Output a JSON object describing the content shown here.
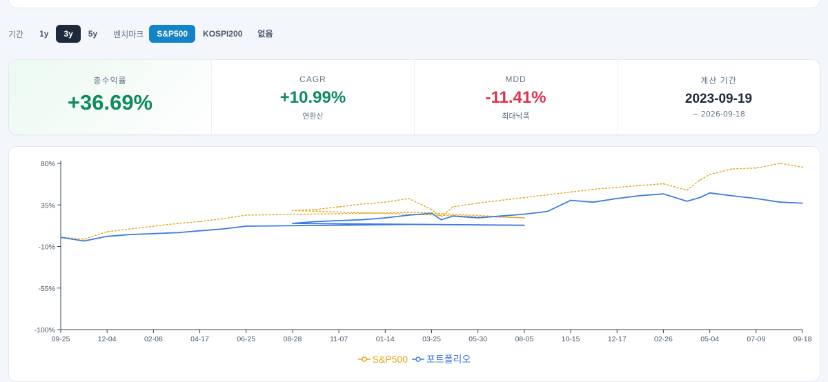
{
  "toolbar": {
    "period_label": "기간",
    "periods": [
      "1y",
      "3y",
      "5y"
    ],
    "active_period": "3y",
    "benchmark_label": "벤치마크",
    "benchmarks": [
      "S&P500",
      "KOSPI200",
      "없음"
    ],
    "active_benchmark": "S&P500"
  },
  "stats": {
    "total_return": {
      "title": "총수익률",
      "value": "+36.69%"
    },
    "cagr": {
      "title": "CAGR",
      "value": "+10.99%",
      "sub": "연환산"
    },
    "mdd": {
      "title": "MDD",
      "value": "-11.41%",
      "sub": "최대낙폭"
    },
    "period": {
      "title": "계산 기간",
      "value": "2023-09-19",
      "sub": "~ 2026-09-18"
    }
  },
  "colors": {
    "benchmark": "#e8a317",
    "portfolio": "#3b7be0",
    "positive": "#0f8a5f",
    "negative": "#e1324d",
    "accent": "#1583c8"
  },
  "chart_data": {
    "type": "line",
    "y_ticks": [
      "80%",
      "35%",
      "-10%",
      "-55%",
      "-100%"
    ],
    "ylim": [
      -100,
      80
    ],
    "x_ticks": [
      "09-25",
      "12-04",
      "02-08",
      "04-17",
      "06-25",
      "08-28",
      "11-07",
      "01-14",
      "03-25",
      "05-30",
      "08-05",
      "10-15",
      "12-17",
      "02-26",
      "05-04",
      "07-09",
      "09-18"
    ],
    "grid": false,
    "legend_position": "bottom",
    "series": [
      {
        "name": "S&P500",
        "style": "dashed",
        "x": [
          "09-25",
          "10-30",
          "12-04",
          "01-06",
          "02-08",
          "03-15",
          "04-17",
          "05-20",
          "06-25",
          "07-20",
          "08-05",
          "08-28",
          "10-02",
          "11-07",
          "12-10",
          "01-14",
          "02-20",
          "03-25",
          "04-08",
          "04-25",
          "05-30",
          "07-01",
          "08-05",
          "09-10",
          "10-15",
          "11-15",
          "12-17",
          "01-20",
          "02-26",
          "03-31",
          "04-20",
          "05-04",
          "06-05",
          "07-09",
          "08-15",
          "09-18"
        ],
        "values": [
          0,
          -2,
          6,
          9,
          12,
          15,
          17,
          20,
          24,
          27,
          21,
          29,
          30,
          33,
          36,
          38,
          42,
          30,
          22,
          33,
          37,
          40,
          43,
          46,
          49,
          52,
          54,
          56,
          58,
          51,
          62,
          68,
          74,
          75,
          80,
          76
        ]
      },
      {
        "name": "포트폴리오",
        "style": "solid",
        "x": [
          "09-25",
          "10-30",
          "12-04",
          "01-06",
          "02-08",
          "03-15",
          "04-17",
          "05-20",
          "06-25",
          "07-20",
          "08-05",
          "08-28",
          "10-02",
          "11-07",
          "12-10",
          "01-14",
          "02-20",
          "03-25",
          "04-08",
          "04-25",
          "05-30",
          "07-01",
          "08-05",
          "09-10",
          "10-15",
          "11-15",
          "12-17",
          "01-20",
          "02-26",
          "03-31",
          "04-20",
          "05-04",
          "06-05",
          "07-09",
          "08-15",
          "09-18"
        ],
        "values": [
          0,
          -4,
          1,
          3,
          4,
          5,
          7,
          9,
          12,
          14,
          13,
          15,
          17,
          18,
          19,
          21,
          24,
          26,
          19,
          23,
          21,
          23,
          25,
          28,
          40,
          38,
          42,
          45,
          47,
          39,
          43,
          48,
          45,
          42,
          38,
          37
        ]
      }
    ]
  }
}
